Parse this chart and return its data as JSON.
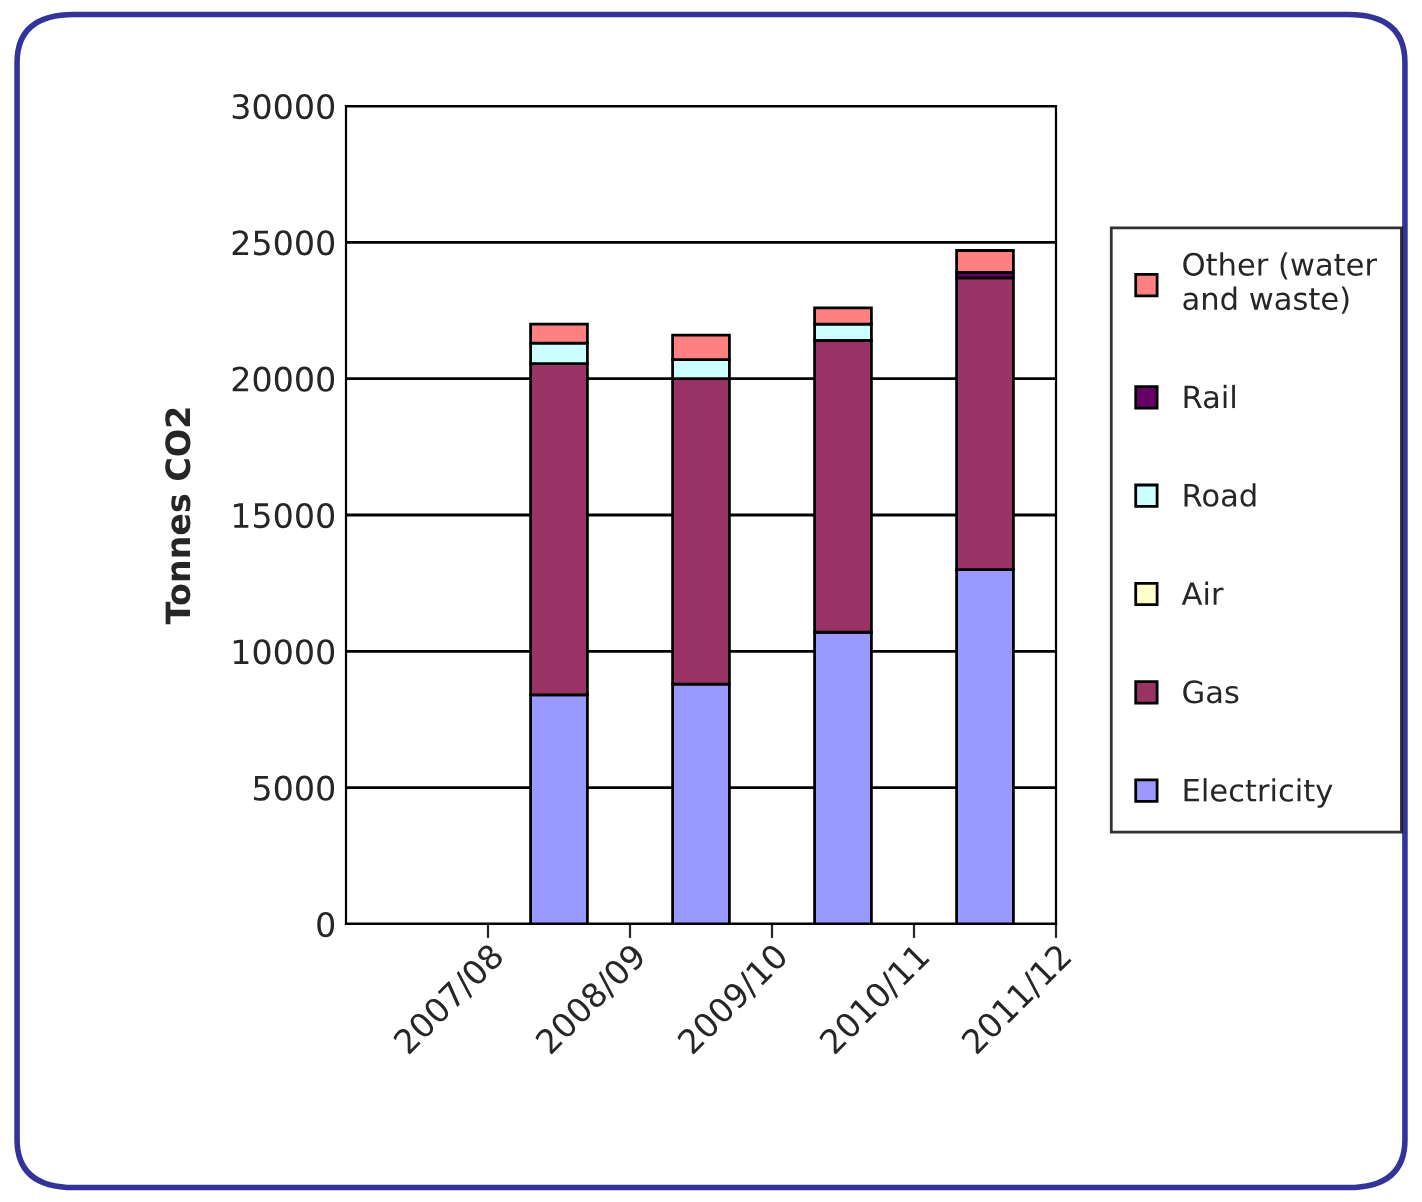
{
  "chart_data": {
    "type": "bar",
    "stacked": true,
    "ylabel": "Tonnes CO2",
    "categories": [
      "2007/08",
      "2008/09",
      "2009/10",
      "2010/11",
      "2011/12"
    ],
    "series": [
      {
        "name": "Electricity",
        "color": "#9999ff",
        "values": [
          null,
          8400,
          8800,
          10700,
          13000
        ]
      },
      {
        "name": "Gas",
        "color": "#993366",
        "values": [
          null,
          12150,
          11200,
          10700,
          10700
        ]
      },
      {
        "name": "Air",
        "color": "#ffffcc",
        "values": [
          null,
          0,
          0,
          0,
          0
        ]
      },
      {
        "name": "Road",
        "color": "#ccffff",
        "values": [
          null,
          750,
          700,
          600,
          0
        ]
      },
      {
        "name": "Rail",
        "color": "#660066",
        "values": [
          null,
          0,
          0,
          0,
          200
        ]
      },
      {
        "name": "Other (water and waste)",
        "color": "#ff8080",
        "values": [
          null,
          700,
          900,
          600,
          800
        ]
      }
    ],
    "ylim": [
      0,
      30000
    ],
    "yticks": [
      0,
      5000,
      10000,
      15000,
      20000,
      25000,
      30000
    ],
    "grid": "y",
    "legend": "right"
  }
}
